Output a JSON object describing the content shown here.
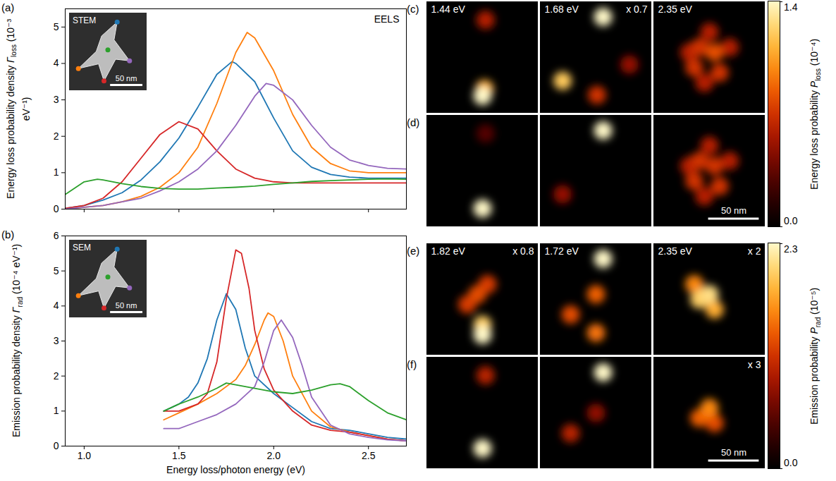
{
  "chart_data": [
    {
      "type": "line",
      "panel": "(a)",
      "annotation": "EELS",
      "inset": {
        "label": "STEM",
        "extent_nm": 120,
        "scalebar_nm": 50,
        "scalebar_label": "50 nm"
      },
      "ylabel": {
        "text": "Energy loss probability density",
        "symbol": "Γ",
        "subscript": "loss",
        "unit": "(10⁻³ eV⁻¹)"
      },
      "xlim": [
        0.9,
        2.7
      ],
      "xticks": [
        {
          "value": 1,
          "label": "1.0"
        },
        1.5,
        {
          "value": 2,
          "label": "2.0"
        },
        2.5
      ],
      "ylim": [
        0,
        5.5
      ],
      "yticks": [
        0,
        1,
        2,
        3,
        4,
        5
      ],
      "tick_labels": "y",
      "series": [
        {
          "color": "#1f77b4",
          "x": [
            0.9,
            1.0,
            1.1,
            1.2,
            1.3,
            1.4,
            1.5,
            1.6,
            1.7,
            1.78,
            1.8,
            1.9,
            2.0,
            2.1,
            2.2,
            2.3,
            2.4,
            2.5,
            2.6,
            2.7
          ],
          "values": [
            0.02,
            0.1,
            0.25,
            0.45,
            0.8,
            1.3,
            1.95,
            2.8,
            3.7,
            4.05,
            4.0,
            3.5,
            2.5,
            1.6,
            1.15,
            0.95,
            0.88,
            0.85,
            0.85,
            0.85
          ]
        },
        {
          "color": "#ff7f0e",
          "x": [
            0.9,
            1.0,
            1.1,
            1.2,
            1.3,
            1.4,
            1.5,
            1.6,
            1.7,
            1.8,
            1.86,
            1.9,
            2.0,
            2.1,
            2.2,
            2.3,
            2.4,
            2.5,
            2.6,
            2.7
          ],
          "values": [
            0.0,
            0.05,
            0.1,
            0.2,
            0.35,
            0.6,
            1.0,
            1.7,
            2.9,
            4.3,
            4.85,
            4.7,
            3.8,
            2.6,
            1.7,
            1.25,
            1.05,
            1.0,
            1.0,
            1.0
          ]
        },
        {
          "color": "#d62728",
          "x": [
            0.9,
            1.0,
            1.1,
            1.2,
            1.3,
            1.4,
            1.5,
            1.6,
            1.7,
            1.8,
            1.9,
            2.0,
            2.1,
            2.2,
            2.3,
            2.4,
            2.5,
            2.6,
            2.7
          ],
          "values": [
            0.02,
            0.1,
            0.3,
            0.75,
            1.4,
            2.05,
            2.4,
            2.2,
            1.6,
            1.1,
            0.85,
            0.75,
            0.72,
            0.72,
            0.72,
            0.72,
            0.72,
            0.72,
            0.72
          ]
        },
        {
          "color": "#9467bd",
          "x": [
            0.9,
            1.0,
            1.1,
            1.2,
            1.3,
            1.4,
            1.5,
            1.6,
            1.7,
            1.8,
            1.9,
            1.96,
            2.0,
            2.1,
            2.2,
            2.3,
            2.4,
            2.5,
            2.6,
            2.7
          ],
          "values": [
            0.0,
            0.05,
            0.1,
            0.2,
            0.3,
            0.5,
            0.75,
            1.1,
            1.6,
            2.3,
            3.1,
            3.45,
            3.4,
            3.0,
            2.3,
            1.7,
            1.35,
            1.2,
            1.12,
            1.1
          ]
        },
        {
          "color": "#2ca02c",
          "x": [
            0.9,
            1.0,
            1.07,
            1.1,
            1.2,
            1.3,
            1.4,
            1.5,
            1.6,
            1.7,
            1.8,
            1.9,
            2.0,
            2.1,
            2.2,
            2.3,
            2.4,
            2.5,
            2.6,
            2.7
          ],
          "values": [
            0.4,
            0.75,
            0.82,
            0.8,
            0.7,
            0.62,
            0.57,
            0.55,
            0.55,
            0.58,
            0.6,
            0.63,
            0.68,
            0.72,
            0.76,
            0.78,
            0.8,
            0.82,
            0.83,
            0.82
          ]
        }
      ]
    },
    {
      "type": "line",
      "panel": "(b)",
      "inset": {
        "label": "SEM",
        "extent_nm": 120,
        "scalebar_nm": 50,
        "scalebar_label": "50 nm"
      },
      "ylabel": {
        "text": "Emission probability density",
        "symbol": "Γ",
        "subscript": "rad",
        "unit": "(10⁻⁴ eV⁻¹)"
      },
      "xlabel": "Energy loss/photon energy (eV)",
      "xlim": [
        0.9,
        2.7
      ],
      "xticks": [
        {
          "value": 1,
          "label": "1.0"
        },
        1.5,
        {
          "value": 2,
          "label": "2.0"
        },
        2.5
      ],
      "ylim": [
        0,
        6
      ],
      "yticks": [
        0,
        1,
        2,
        3,
        4,
        5,
        6
      ],
      "series": [
        {
          "color": "#1f77b4",
          "x": [
            1.42,
            1.5,
            1.55,
            1.6,
            1.65,
            1.7,
            1.75,
            1.8,
            1.85,
            1.9,
            2.0,
            2.1,
            2.2,
            2.3,
            2.4,
            2.5,
            2.6,
            2.7
          ],
          "values": [
            1.0,
            1.2,
            1.4,
            1.8,
            2.5,
            3.6,
            4.35,
            3.9,
            2.8,
            2.0,
            1.5,
            1.1,
            0.7,
            0.5,
            0.45,
            0.35,
            0.25,
            0.2
          ]
        },
        {
          "color": "#ff7f0e",
          "x": [
            1.42,
            1.5,
            1.6,
            1.7,
            1.8,
            1.85,
            1.9,
            1.95,
            1.97,
            2.0,
            2.05,
            2.1,
            2.2,
            2.3,
            2.4,
            2.5,
            2.6,
            2.7
          ],
          "values": [
            0.75,
            0.95,
            1.2,
            1.5,
            1.9,
            2.3,
            2.9,
            3.6,
            3.8,
            3.7,
            3.0,
            2.0,
            1.0,
            0.55,
            0.4,
            0.3,
            0.2,
            0.15
          ]
        },
        {
          "color": "#d62728",
          "x": [
            1.42,
            1.5,
            1.6,
            1.65,
            1.7,
            1.75,
            1.8,
            1.83,
            1.87,
            1.9,
            1.95,
            2.0,
            2.1,
            2.2,
            2.3,
            2.4,
            2.5,
            2.6,
            2.7
          ],
          "values": [
            1.0,
            1.0,
            1.2,
            1.5,
            2.4,
            4.2,
            5.6,
            5.5,
            4.5,
            3.3,
            2.2,
            1.6,
            1.0,
            0.6,
            0.45,
            0.4,
            0.3,
            0.2,
            0.15
          ]
        },
        {
          "color": "#9467bd",
          "x": [
            1.42,
            1.5,
            1.6,
            1.7,
            1.8,
            1.9,
            1.95,
            2.0,
            2.04,
            2.1,
            2.15,
            2.2,
            2.3,
            2.4,
            2.5,
            2.6,
            2.7
          ],
          "values": [
            0.5,
            0.5,
            0.7,
            0.9,
            1.2,
            1.7,
            2.4,
            3.3,
            3.6,
            3.1,
            2.3,
            1.4,
            0.6,
            0.35,
            0.25,
            0.18,
            0.15
          ]
        },
        {
          "color": "#2ca02c",
          "x": [
            1.42,
            1.5,
            1.6,
            1.7,
            1.75,
            1.8,
            1.9,
            2.0,
            2.1,
            2.2,
            2.3,
            2.35,
            2.4,
            2.5,
            2.6,
            2.7
          ],
          "values": [
            1.0,
            1.2,
            1.4,
            1.65,
            1.8,
            1.75,
            1.65,
            1.55,
            1.5,
            1.6,
            1.75,
            1.78,
            1.7,
            1.3,
            0.95,
            0.75
          ]
        }
      ]
    },
    {
      "type": "heatmap",
      "xlim": [
        0,
        110
      ],
      "ylim": [
        0,
        110
      ],
      "scalebar_nm": 50,
      "scalebar_label": "50 nm",
      "colorbar": {
        "label": "Energy loss probability",
        "symbol": "P",
        "subscript": "loss",
        "unit": "(10⁻⁴)",
        "range": [
          0,
          1.4
        ],
        "ticks": [
          {
            "value": 0,
            "label": "0.0"
          },
          1.4
        ]
      },
      "rows": [
        {
          "panel": "(c)",
          "maps": [
            {
              "label": "1.44 eV",
              "spots": [
                [
                  58,
                  18,
                  0.6
                ],
                [
                  57,
                  86,
                  1.1
                ],
                [
                  55,
                  93,
                  1.4
                ]
              ]
            },
            {
              "label": "1.68 eV",
              "factor": "x 0.7",
              "spots": [
                [
                  88,
                  62,
                  0.5
                ],
                [
                  56,
                  92,
                  0.7
                ],
                [
                  22,
                  78,
                  1.2
                ],
                [
                  62,
                  15,
                  1.4
                ]
              ]
            },
            {
              "label": "2.35 eV",
              "spots": [
                [
                  35,
                  50,
                  0.6
                ],
                [
                  75,
                  45,
                  0.6
                ],
                [
                  55,
                  30,
                  0.6
                ],
                [
                  50,
                  80,
                  0.6
                ],
                [
                  45,
                  45,
                  0.7
                ],
                [
                  40,
                  65,
                  0.7
                ],
                [
                  65,
                  70,
                  0.7
                ],
                [
                  60,
                  50,
                  0.8
                ]
              ]
            }
          ]
        },
        {
          "panel": "(d)",
          "scalebar": true,
          "maps": [
            {
              "spots": [
                [
                  58,
                  18,
                  0.3
                ],
                [
                  55,
                  92,
                  1.4
                ]
              ]
            },
            {
              "spots": [
                [
                  22,
                  78,
                  0.5
                ],
                [
                  62,
                  15,
                  1.4
                ]
              ]
            },
            {
              "spots": [
                [
                  35,
                  50,
                  0.6
                ],
                [
                  75,
                  45,
                  0.6
                ],
                [
                  55,
                  30,
                  0.6
                ],
                [
                  50,
                  80,
                  0.6
                ],
                [
                  45,
                  45,
                  0.7
                ],
                [
                  40,
                  65,
                  0.7
                ],
                [
                  65,
                  70,
                  0.7
                ],
                [
                  60,
                  50,
                  0.7
                ]
              ]
            }
          ]
        }
      ]
    },
    {
      "type": "heatmap",
      "xlim": [
        0,
        110
      ],
      "ylim": [
        0,
        110
      ],
      "scalebar_nm": 50,
      "scalebar_label": "50 nm",
      "colorbar": {
        "label": "Emission probability",
        "symbol": "P",
        "subscript": "rad",
        "unit": "(10⁻⁵)",
        "range": [
          0,
          2.3
        ],
        "ticks": [
          {
            "value": 0,
            "label": "0.0"
          },
          2.3
        ]
      },
      "rows": [
        {
          "panel": "(e)",
          "maps": [
            {
              "label": "1.82 eV",
              "factor": "x 0.8",
              "spots": [
                [
                  40,
                  60,
                  1.2
                ],
                [
                  60,
                  40,
                  1.2
                ],
                [
                  50,
                  50,
                  1.3
                ],
                [
                  55,
                  80,
                  2.0
                ],
                [
                  55,
                  90,
                  2.3
                ]
              ]
            },
            {
              "label": "1.72 eV",
              "spots": [
                [
                  30,
                  70,
                  1.3
                ],
                [
                  55,
                  50,
                  1.4
                ],
                [
                  55,
                  88,
                  1.5
                ],
                [
                  62,
                  15,
                  2.3
                ]
              ]
            },
            {
              "label": "2.35 eV",
              "factor": "x 2",
              "spots": [
                [
                  40,
                  40,
                  1.6
                ],
                [
                  60,
                  65,
                  1.8
                ],
                [
                  45,
                  55,
                  2.0
                ],
                [
                  55,
                  50,
                  2.1
                ]
              ]
            }
          ]
        },
        {
          "panel": "(f)",
          "scalebar": true,
          "maps": [
            {
              "spots": [
                [
                  58,
                  18,
                  1.0
                ],
                [
                  55,
                  90,
                  2.3
                ]
              ]
            },
            {
              "spots": [
                [
                  55,
                  55,
                  0.8
                ],
                [
                  30,
                  75,
                  1.0
                ],
                [
                  62,
                  15,
                  2.3
                ]
              ]
            },
            {
              "factor": "x 3",
              "spots": [
                [
                  60,
                  65,
                  1.3
                ],
                [
                  45,
                  60,
                  1.4
                ],
                [
                  55,
                  50,
                  1.6
                ]
              ]
            }
          ]
        }
      ]
    }
  ]
}
